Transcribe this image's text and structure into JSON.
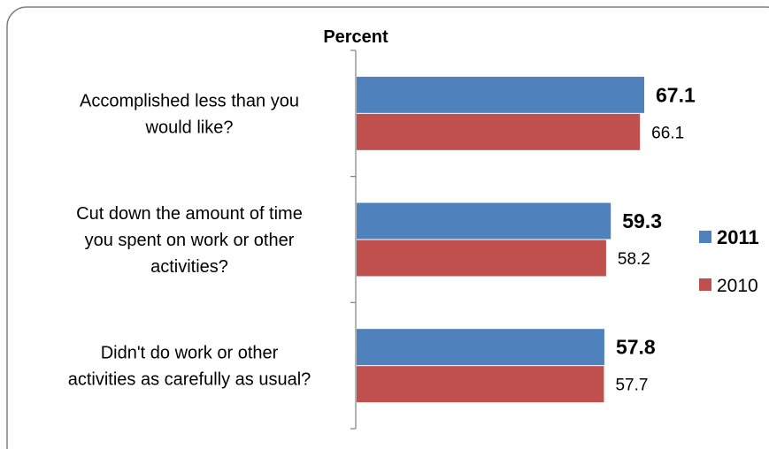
{
  "chart_data": {
    "type": "bar",
    "orientation": "horizontal",
    "title": "Percent",
    "categories": [
      [
        "Accomplished less than you",
        "would like?"
      ],
      [
        "Cut down the amount of time",
        "you spent on work or other",
        "activities?"
      ],
      [
        "Didn't do work or other",
        "activities as carefully as usual?"
      ]
    ],
    "series": [
      {
        "name": "2011",
        "values": [
          67.1,
          59.3,
          57.8
        ],
        "labels": [
          "67.1",
          "59.3",
          "57.8"
        ],
        "color": "#4F81BD",
        "bold": true
      },
      {
        "name": "2010",
        "values": [
          66.1,
          58.2,
          57.7
        ],
        "labels": [
          "66.1",
          "58.2",
          "57.7"
        ],
        "color": "#C0504D",
        "bold": false
      }
    ],
    "xlim": [
      0,
      72
    ],
    "grid": false,
    "legend_position": "right"
  }
}
